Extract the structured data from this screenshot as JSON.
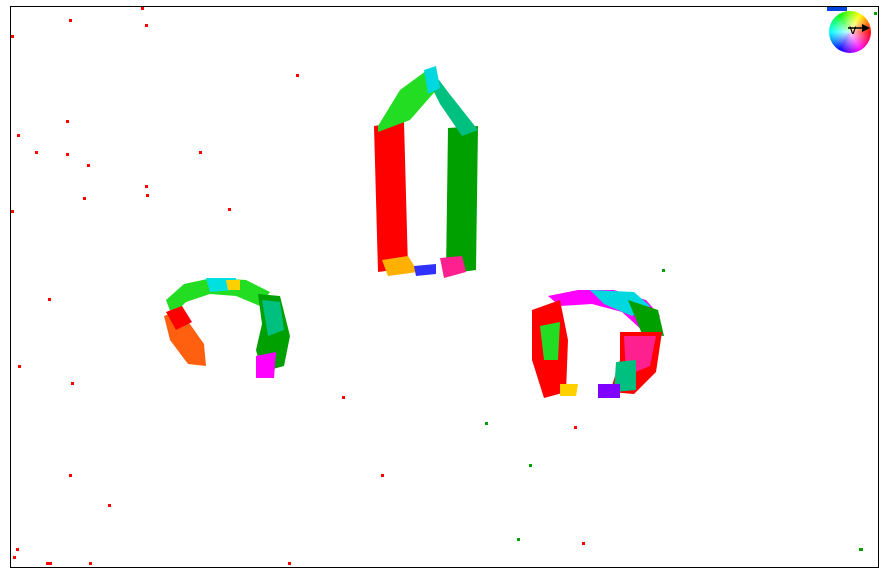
{
  "colors": {
    "red": "#ff0000",
    "green": "#00a000",
    "bright_green": "#22dd22",
    "teal": "#00c080",
    "cyan": "#00d8e0",
    "magenta": "#ff00ff",
    "pink": "#ff2090",
    "orange": "#ff6010",
    "yellow": "#ffd000",
    "blue": "#3030ff",
    "violet": "#8000ff",
    "frame": "#000000",
    "background": "#ffffff"
  },
  "legend": {
    "wheel_icon": "color-wheel-icon",
    "direction_label": "v"
  }
}
